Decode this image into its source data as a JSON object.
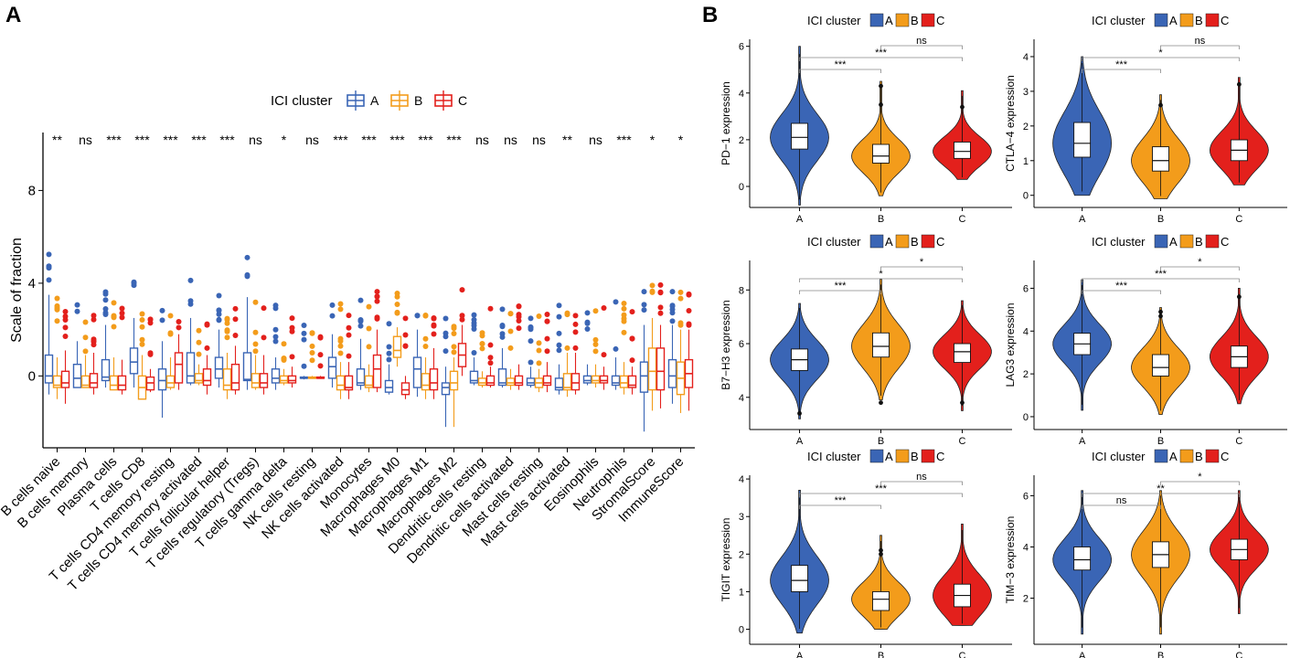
{
  "panel_labels": [
    "A",
    "B"
  ],
  "colors": {
    "A": "#3a65b5",
    "B": "#f39c1b",
    "C": "#e3201c"
  },
  "chart_data": [
    {
      "type": "box",
      "panel": "A",
      "legend": {
        "title": "ICI cluster",
        "entries": [
          "A",
          "B",
          "C"
        ],
        "placement": "top"
      },
      "ylabel": "Scale of fraction",
      "xlabel": "",
      "ylim": [
        -3.1,
        10.5
      ],
      "yticks": [
        0,
        4,
        8
      ],
      "categories": [
        "B cells naive",
        "B cells memory",
        "Plasma cells",
        "T cells CD8",
        "T cells CD4 memory resting",
        "T cells CD4 memory activated",
        "T cells follicular helper",
        "T cells regulatory (Tregs)",
        "T cells gamma delta",
        "NK cells resting",
        "NK cells activated",
        "Monocytes",
        "Macrophages M0",
        "Macrophages M1",
        "Macrophages M2",
        "Dendritic cells resting",
        "Dendritic cells activated",
        "Mast cells resting",
        "Mast cells activated",
        "Eosinophils",
        "Neutrophils",
        "StromalScore",
        "ImmuneScore"
      ],
      "significance": [
        "**",
        "ns",
        "***",
        "***",
        "***",
        "***",
        "***",
        "ns",
        "*",
        "ns",
        "***",
        "***",
        "***",
        "***",
        "***",
        "ns",
        "ns",
        "ns",
        "**",
        "ns",
        "***",
        "*",
        "*"
      ],
      "series": [
        {
          "name": "A",
          "boxes": [
            [
              -0.8,
              -0.3,
              0.0,
              0.9,
              3.5
            ],
            [
              -0.5,
              -0.5,
              -0.1,
              0.5,
              1.5
            ],
            [
              -0.5,
              -0.2,
              -0.05,
              0.7,
              2.2
            ],
            [
              -0.5,
              0.1,
              0.6,
              1.2,
              2.5
            ],
            [
              -1.8,
              -0.6,
              -0.2,
              0.3,
              1.5
            ],
            [
              -0.4,
              -0.3,
              0.0,
              1.0,
              2.5
            ],
            [
              -0.5,
              -0.1,
              0.3,
              0.8,
              2.0
            ],
            [
              -0.6,
              -0.2,
              -0.15,
              1.0,
              3.4
            ],
            [
              -0.6,
              -0.3,
              -0.1,
              0.3,
              0.8
            ],
            [
              -0.15,
              -0.1,
              -0.1,
              -0.05,
              0.0
            ],
            [
              -0.5,
              -0.1,
              0.4,
              0.8,
              1.8
            ],
            [
              -0.6,
              -0.4,
              -0.3,
              0.3,
              1.6
            ],
            [
              -0.8,
              -0.7,
              -0.5,
              -0.2,
              0.5
            ],
            [
              -0.9,
              -0.5,
              0.3,
              0.8,
              2.0
            ],
            [
              -2.2,
              -0.8,
              -0.5,
              -0.3,
              0.4
            ],
            [
              -0.4,
              -0.3,
              -0.2,
              0.2,
              0.8
            ],
            [
              -0.5,
              -0.4,
              -0.3,
              0.3,
              1.2
            ],
            [
              -0.5,
              -0.4,
              -0.3,
              -0.1,
              0.4
            ],
            [
              -0.8,
              -0.6,
              -0.5,
              -0.1,
              0.5
            ],
            [
              -0.4,
              -0.3,
              -0.2,
              0.0,
              0.5
            ],
            [
              -0.6,
              -0.4,
              -0.3,
              0.0,
              0.8
            ],
            [
              -2.4,
              -0.7,
              0.0,
              0.6,
              2.2
            ],
            [
              -1.2,
              -0.5,
              0.0,
              0.7,
              2.2
            ]
          ]
        },
        {
          "name": "B",
          "boxes": [
            [
              -1.0,
              -0.5,
              -0.4,
              0.0,
              0.8
            ],
            [
              -0.5,
              -0.5,
              -0.4,
              0.0,
              0.9
            ],
            [
              -0.6,
              -0.6,
              -0.4,
              0.0,
              0.8
            ],
            [
              -0.6,
              -1.0,
              -0.5,
              0.0,
              0.9
            ],
            [
              -0.6,
              -0.5,
              -0.3,
              0.0,
              0.8
            ],
            [
              -0.4,
              -0.3,
              -0.2,
              0.1,
              0.5
            ],
            [
              -1.0,
              -0.6,
              -0.4,
              0.3,
              1.0
            ],
            [
              -0.6,
              -0.5,
              -0.3,
              0.1,
              0.9
            ],
            [
              -0.4,
              -0.3,
              -0.2,
              0.0,
              0.3
            ],
            [
              -0.1,
              -0.1,
              -0.1,
              -0.05,
              0.0
            ],
            [
              -1.0,
              -0.6,
              -0.4,
              0.0,
              0.6
            ],
            [
              -0.7,
              -0.5,
              -0.4,
              0.0,
              0.5
            ],
            [
              0.4,
              0.8,
              1.1,
              1.7,
              2.1
            ],
            [
              -1.0,
              -0.6,
              -0.4,
              0.1,
              0.8
            ],
            [
              -2.2,
              -0.6,
              -0.3,
              0.2,
              0.8
            ],
            [
              -0.5,
              -0.4,
              -0.3,
              -0.1,
              0.2
            ],
            [
              -0.6,
              -0.4,
              -0.3,
              -0.1,
              0.3
            ],
            [
              -0.7,
              -0.5,
              -0.3,
              -0.1,
              0.3
            ],
            [
              -0.9,
              -0.6,
              -0.5,
              0.1,
              1.0
            ],
            [
              -0.5,
              -0.3,
              -0.2,
              0.0,
              0.5
            ],
            [
              -0.8,
              -0.5,
              -0.3,
              0.0,
              0.6
            ],
            [
              -1.5,
              -0.6,
              0.2,
              1.2,
              2.5
            ],
            [
              -1.6,
              -0.8,
              -0.1,
              0.6,
              2.0
            ]
          ]
        },
        {
          "name": "C",
          "boxes": [
            [
              -1.2,
              -0.5,
              -0.3,
              0.2,
              1.1
            ],
            [
              -0.8,
              -0.5,
              -0.3,
              0.1,
              1.0
            ],
            [
              -0.8,
              -0.6,
              -0.4,
              0.0,
              0.7
            ],
            [
              -0.7,
              -0.6,
              -0.3,
              -0.05,
              0.3
            ],
            [
              -0.6,
              -0.3,
              0.5,
              1.0,
              1.8
            ],
            [
              -0.8,
              -0.4,
              -0.2,
              0.3,
              0.9
            ],
            [
              -0.8,
              -0.6,
              -0.3,
              0.5,
              1.3
            ],
            [
              -0.8,
              -0.5,
              -0.3,
              0.1,
              0.9
            ],
            [
              -0.5,
              -0.3,
              -0.2,
              0.0,
              0.4
            ],
            [
              -0.1,
              -0.1,
              -0.1,
              -0.05,
              0.0
            ],
            [
              -1.0,
              -0.6,
              -0.5,
              0.0,
              0.6
            ],
            [
              -0.7,
              -0.5,
              0.3,
              0.9,
              2.0
            ],
            [
              -1.0,
              -0.8,
              -0.6,
              -0.3,
              0.0
            ],
            [
              -1.0,
              -0.6,
              -0.3,
              0.3,
              1.2
            ],
            [
              0.0,
              0.4,
              0.9,
              1.4,
              2.2
            ],
            [
              -0.5,
              -0.4,
              -0.3,
              0.0,
              0.4
            ],
            [
              -0.6,
              -0.4,
              -0.3,
              0.0,
              0.5
            ],
            [
              -0.7,
              -0.4,
              -0.3,
              0.0,
              0.6
            ],
            [
              -0.8,
              -0.6,
              -0.3,
              0.1,
              1.0
            ],
            [
              -0.6,
              -0.3,
              -0.2,
              0.0,
              0.4
            ],
            [
              -0.8,
              -0.5,
              -0.4,
              0.0,
              0.4
            ],
            [
              -1.4,
              -0.6,
              0.2,
              1.2,
              2.2
            ],
            [
              -1.5,
              -0.5,
              0.1,
              0.7,
              2.0
            ]
          ]
        }
      ]
    },
    {
      "type": "violin",
      "panel": "B",
      "ylabel": "PD−1 expression",
      "legend": {
        "title": "ICI cluster",
        "entries": [
          "A",
          "B",
          "C"
        ]
      },
      "categories": [
        "A",
        "B",
        "C"
      ],
      "ylim": [
        -0.9,
        6.3
      ],
      "yticks": [
        0,
        2,
        4,
        6
      ],
      "groups": [
        {
          "name": "A",
          "min": -0.8,
          "q1": 1.6,
          "median": 2.1,
          "q3": 2.7,
          "max": 6.0,
          "outliers": []
        },
        {
          "name": "B",
          "min": -0.4,
          "q1": 1.0,
          "median": 1.3,
          "q3": 1.8,
          "max": 4.5,
          "outliers": [
            3.5,
            4.3
          ]
        },
        {
          "name": "C",
          "min": 0.3,
          "q1": 1.2,
          "median": 1.5,
          "q3": 1.9,
          "max": 4.1,
          "outliers": [
            3.4
          ]
        }
      ],
      "comparisons": [
        {
          "pair": [
            "A",
            "B"
          ],
          "label": "***"
        },
        {
          "pair": [
            "A",
            "C"
          ],
          "label": "***"
        },
        {
          "pair": [
            "B",
            "C"
          ],
          "label": "ns"
        }
      ]
    },
    {
      "type": "violin",
      "panel": "B",
      "ylabel": "CTLA−4 expression",
      "legend": {
        "title": "ICI cluster",
        "entries": [
          "A",
          "B",
          "C"
        ]
      },
      "categories": [
        "A",
        "B",
        "C"
      ],
      "ylim": [
        -0.35,
        4.5
      ],
      "yticks": [
        0,
        1,
        2,
        3,
        4
      ],
      "groups": [
        {
          "name": "A",
          "min": 0.0,
          "q1": 1.1,
          "median": 1.5,
          "q3": 2.1,
          "max": 4.0,
          "outliers": []
        },
        {
          "name": "B",
          "min": -0.1,
          "q1": 0.7,
          "median": 1.0,
          "q3": 1.4,
          "max": 2.9,
          "outliers": [
            2.6
          ]
        },
        {
          "name": "C",
          "min": 0.3,
          "q1": 1.0,
          "median": 1.3,
          "q3": 1.6,
          "max": 3.4,
          "outliers": [
            3.2
          ]
        }
      ],
      "comparisons": [
        {
          "pair": [
            "A",
            "B"
          ],
          "label": "***"
        },
        {
          "pair": [
            "A",
            "C"
          ],
          "label": "*"
        },
        {
          "pair": [
            "B",
            "C"
          ],
          "label": "ns"
        }
      ]
    },
    {
      "type": "violin",
      "panel": "B",
      "ylabel": "B7−H3 expression",
      "legend": {
        "title": "ICI cluster",
        "entries": [
          "A",
          "B",
          "C"
        ]
      },
      "categories": [
        "A",
        "B",
        "C"
      ],
      "ylim": [
        2.8,
        9.1
      ],
      "yticks": [
        4,
        6,
        8
      ],
      "groups": [
        {
          "name": "A",
          "min": 3.2,
          "q1": 5.0,
          "median": 5.4,
          "q3": 5.8,
          "max": 7.5,
          "outliers": [
            3.4
          ]
        },
        {
          "name": "B",
          "min": 3.9,
          "q1": 5.5,
          "median": 5.9,
          "q3": 6.4,
          "max": 8.4,
          "outliers": [
            3.8
          ]
        },
        {
          "name": "C",
          "min": 3.5,
          "q1": 5.3,
          "median": 5.7,
          "q3": 6.0,
          "max": 7.6,
          "outliers": [
            3.8
          ]
        }
      ],
      "comparisons": [
        {
          "pair": [
            "A",
            "B"
          ],
          "label": "***"
        },
        {
          "pair": [
            "A",
            "C"
          ],
          "label": "*"
        },
        {
          "pair": [
            "B",
            "C"
          ],
          "label": "*"
        }
      ]
    },
    {
      "type": "violin",
      "panel": "B",
      "ylabel": "LAG3 expression",
      "legend": {
        "title": "ICI cluster",
        "entries": [
          "A",
          "B",
          "C"
        ]
      },
      "categories": [
        "A",
        "B",
        "C"
      ],
      "ylim": [
        -0.6,
        7.3
      ],
      "yticks": [
        0,
        2,
        4,
        6
      ],
      "groups": [
        {
          "name": "A",
          "min": 0.3,
          "q1": 2.9,
          "median": 3.4,
          "q3": 3.9,
          "max": 6.4,
          "outliers": []
        },
        {
          "name": "B",
          "min": 0.1,
          "q1": 1.9,
          "median": 2.3,
          "q3": 2.9,
          "max": 5.1,
          "outliers": [
            4.7,
            4.9
          ]
        },
        {
          "name": "C",
          "min": 0.6,
          "q1": 2.3,
          "median": 2.8,
          "q3": 3.3,
          "max": 6.0,
          "outliers": [
            5.6
          ]
        }
      ],
      "comparisons": [
        {
          "pair": [
            "A",
            "B"
          ],
          "label": "***"
        },
        {
          "pair": [
            "A",
            "C"
          ],
          "label": "***"
        },
        {
          "pair": [
            "B",
            "C"
          ],
          "label": "*"
        }
      ]
    },
    {
      "type": "violin",
      "panel": "B",
      "ylabel": "TIGIT expression",
      "legend": {
        "title": "ICI cluster",
        "entries": [
          "A",
          "B",
          "C"
        ]
      },
      "categories": [
        "A",
        "B",
        "C"
      ],
      "ylim": [
        -0.4,
        4.1
      ],
      "yticks": [
        0,
        1,
        2,
        3,
        4
      ],
      "groups": [
        {
          "name": "A",
          "min": -0.1,
          "q1": 1.0,
          "median": 1.3,
          "q3": 1.7,
          "max": 3.7,
          "outliers": []
        },
        {
          "name": "B",
          "min": 0.0,
          "q1": 0.5,
          "median": 0.8,
          "q3": 1.0,
          "max": 2.5,
          "outliers": [
            2.0,
            2.1
          ]
        },
        {
          "name": "C",
          "min": 0.1,
          "q1": 0.6,
          "median": 0.9,
          "q3": 1.2,
          "max": 2.8,
          "outliers": []
        }
      ],
      "comparisons": [
        {
          "pair": [
            "A",
            "B"
          ],
          "label": "***"
        },
        {
          "pair": [
            "A",
            "C"
          ],
          "label": "***"
        },
        {
          "pair": [
            "B",
            "C"
          ],
          "label": "ns"
        }
      ]
    },
    {
      "type": "violin",
      "panel": "B",
      "ylabel": "TIM−3 expression",
      "legend": {
        "title": "ICI cluster",
        "entries": [
          "A",
          "B",
          "C"
        ]
      },
      "categories": [
        "A",
        "B",
        "C"
      ],
      "ylim": [
        0.2,
        6.8
      ],
      "yticks": [
        2,
        4,
        6
      ],
      "groups": [
        {
          "name": "A",
          "min": 0.6,
          "q1": 3.1,
          "median": 3.5,
          "q3": 4.0,
          "max": 6.2,
          "outliers": []
        },
        {
          "name": "B",
          "min": 0.6,
          "q1": 3.2,
          "median": 3.7,
          "q3": 4.2,
          "max": 6.2,
          "outliers": []
        },
        {
          "name": "C",
          "min": 1.4,
          "q1": 3.5,
          "median": 3.9,
          "q3": 4.3,
          "max": 6.2,
          "outliers": []
        }
      ],
      "comparisons": [
        {
          "pair": [
            "A",
            "B"
          ],
          "label": "ns"
        },
        {
          "pair": [
            "A",
            "C"
          ],
          "label": "**"
        },
        {
          "pair": [
            "B",
            "C"
          ],
          "label": "*"
        }
      ]
    }
  ]
}
